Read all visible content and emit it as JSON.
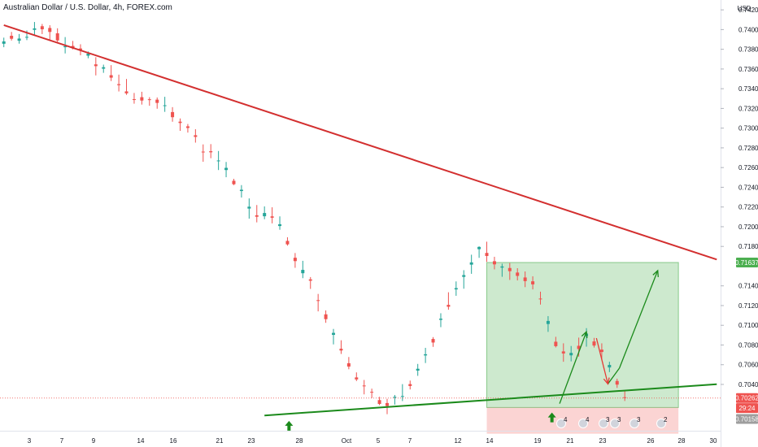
{
  "header": {
    "title": "Australian Dollar / U.S. Dollar, 4h, FOREX.com"
  },
  "chart_data": {
    "type": "candlestick",
    "title": "Australian Dollar / U.S. Dollar, 4h, FOREX.com",
    "currency_label": "USD",
    "ylim": [
      0.6993,
      0.743
    ],
    "y_ticks": [
      "0.74200",
      "0.74000",
      "0.73800",
      "0.73600",
      "0.73400",
      "0.73200",
      "0.73000",
      "0.72800",
      "0.72600",
      "0.72400",
      "0.72200",
      "0.72000",
      "0.71800",
      "0.71400",
      "0.71200",
      "0.71000",
      "0.70800",
      "0.70600",
      "0.70400"
    ],
    "x_ticks": [
      "3",
      "7",
      "9",
      "14",
      "16",
      "21",
      "23",
      "28",
      "Oct",
      "5",
      "7",
      "12",
      "14",
      "19",
      "21",
      "23",
      "26",
      "28",
      "30"
    ],
    "price_tags": [
      {
        "label": "0.71637",
        "value": 0.71637,
        "color": "#4caf50"
      },
      {
        "label": "0.70262",
        "value": 0.70262,
        "color": "#ef5350"
      },
      {
        "label": "29:24",
        "value": 0.7016,
        "color": "#ef5350"
      },
      {
        "label": "0.70158",
        "value": 0.7005,
        "color": "#9e9e9e"
      }
    ],
    "trendlines": [
      {
        "name": "resistance",
        "color": "#d32f2f",
        "from": [
          0,
          0.74045
        ],
        "to": [
          93,
          0.71667
        ]
      },
      {
        "name": "support",
        "color": "#1b8a1b",
        "from": [
          34,
          0.70085
        ],
        "to": [
          93,
          0.70402
        ]
      }
    ],
    "position": {
      "entry": 0.70166,
      "target": 0.71637,
      "stop": 0.699,
      "start_bar": 63,
      "end_bar": 88
    },
    "projection": [
      [
        72.5,
        0.70205
      ],
      [
        76,
        0.70935
      ],
      [
        77.3,
        0.7087
      ],
      [
        78.8,
        0.70405
      ],
      [
        80.3,
        0.70565
      ],
      [
        85.3,
        0.71555
      ]
    ],
    "arrows_up": [
      [
        37.2,
        0.7003
      ],
      [
        71.5,
        0.70115
      ]
    ],
    "bull_color": "#26a69a",
    "bear_color": "#ef5350",
    "events": [
      "4",
      "4",
      "3",
      "3",
      "3",
      "2"
    ],
    "candles": [
      [
        0.73856,
        0.73918,
        0.73821,
        0.7388
      ],
      [
        0.73937,
        0.73976,
        0.73889,
        0.73907
      ],
      [
        0.73887,
        0.73955,
        0.73857,
        0.73909
      ],
      [
        0.73925,
        0.73991,
        0.73893,
        0.73926
      ],
      [
        0.73997,
        0.74077,
        0.73938,
        0.74012
      ],
      [
        0.74034,
        0.74057,
        0.73954,
        0.74003
      ],
      [
        0.74016,
        0.74044,
        0.73893,
        0.73976
      ],
      [
        0.73962,
        0.74013,
        0.73875,
        0.7389
      ],
      [
        0.73821,
        0.73924,
        0.73758,
        0.73832
      ],
      [
        0.73834,
        0.73885,
        0.73799,
        0.73809
      ],
      [
        0.73808,
        0.73851,
        0.73739,
        0.73794
      ],
      [
        0.73735,
        0.73778,
        0.73709,
        0.73756
      ],
      [
        0.73647,
        0.7372,
        0.73535,
        0.73629
      ],
      [
        0.73603,
        0.73644,
        0.73561,
        0.73618
      ],
      [
        0.73537,
        0.73639,
        0.73478,
        0.73512
      ],
      [
        0.73446,
        0.73543,
        0.73372,
        0.73436
      ],
      [
        0.73373,
        0.73499,
        0.73338,
        0.73353
      ],
      [
        0.73294,
        0.73357,
        0.73248,
        0.7329
      ],
      [
        0.73314,
        0.73369,
        0.73239,
        0.7328
      ],
      [
        0.73293,
        0.73314,
        0.73227,
        0.73292
      ],
      [
        0.73289,
        0.73311,
        0.73197,
        0.73256
      ],
      [
        0.73229,
        0.73318,
        0.73165,
        0.73232
      ],
      [
        0.73163,
        0.73213,
        0.73065,
        0.73111
      ],
      [
        0.73066,
        0.73098,
        0.72972,
        0.73052
      ],
      [
        0.73018,
        0.73042,
        0.72955,
        0.73002
      ],
      [
        0.72928,
        0.72989,
        0.72853,
        0.72911
      ],
      [
        0.72762,
        0.72835,
        0.72659,
        0.7276
      ],
      [
        0.72766,
        0.72838,
        0.72695,
        0.72755
      ],
      [
        0.72669,
        0.72768,
        0.72575,
        0.72672
      ],
      [
        0.72575,
        0.72657,
        0.72502,
        0.72597
      ],
      [
        0.72466,
        0.72486,
        0.72422,
        0.72431
      ],
      [
        0.72362,
        0.72422,
        0.72296,
        0.72375
      ],
      [
        0.72184,
        0.72287,
        0.72082,
        0.72203
      ],
      [
        0.72116,
        0.7222,
        0.72044,
        0.72101
      ],
      [
        0.72106,
        0.72206,
        0.72076,
        0.72139
      ],
      [
        0.72105,
        0.72197,
        0.72034,
        0.72091
      ],
      [
        0.72007,
        0.72105,
        0.71969,
        0.72025
      ],
      [
        0.71856,
        0.71893,
        0.71808,
        0.71821
      ],
      [
        0.71685,
        0.71733,
        0.71583,
        0.71651
      ],
      [
        0.71528,
        0.71654,
        0.71478,
        0.71562
      ],
      [
        0.71466,
        0.71489,
        0.71369,
        0.71452
      ],
      [
        0.71255,
        0.71318,
        0.71141,
        0.71249
      ],
      [
        0.71111,
        0.71151,
        0.71025,
        0.71062
      ],
      [
        0.70903,
        0.70963,
        0.70806,
        0.70923
      ],
      [
        0.70762,
        0.70848,
        0.70709,
        0.70744
      ],
      [
        0.70615,
        0.70678,
        0.70554,
        0.70581
      ],
      [
        0.70471,
        0.70522,
        0.70434,
        0.70451
      ],
      [
        0.70389,
        0.70445,
        0.70299,
        0.70381
      ],
      [
        0.70325,
        0.70357,
        0.70262,
        0.70323
      ],
      [
        0.70241,
        0.70274,
        0.7019,
        0.70202
      ],
      [
        0.70211,
        0.70254,
        0.70098,
        0.70181
      ],
      [
        0.70265,
        0.70293,
        0.70195,
        0.70274
      ],
      [
        0.7028,
        0.70403,
        0.70231,
        0.70282
      ],
      [
        0.70403,
        0.70439,
        0.70349,
        0.70384
      ],
      [
        0.7054,
        0.70608,
        0.70487,
        0.70559
      ],
      [
        0.70694,
        0.70771,
        0.70617,
        0.70706
      ],
      [
        0.70861,
        0.7088,
        0.70781,
        0.70825
      ],
      [
        0.71055,
        0.71122,
        0.70981,
        0.71067
      ],
      [
        0.71207,
        0.71335,
        0.71158,
        0.71188
      ],
      [
        0.71364,
        0.71445,
        0.71299,
        0.71377
      ],
      [
        0.71491,
        0.71559,
        0.71371,
        0.71509
      ],
      [
        0.71615,
        0.71716,
        0.71522,
        0.71638
      ],
      [
        0.71772,
        0.71801,
        0.71684,
        0.71795
      ],
      [
        0.71734,
        0.71848,
        0.71643,
        0.71703
      ],
      [
        0.7165,
        0.71695,
        0.71567,
        0.71618
      ],
      [
        0.71585,
        0.71625,
        0.71492,
        0.71597
      ],
      [
        0.71581,
        0.71632,
        0.7146,
        0.71549
      ],
      [
        0.71535,
        0.71579,
        0.71455,
        0.71501
      ],
      [
        0.71485,
        0.71546,
        0.71387,
        0.71448
      ],
      [
        0.71446,
        0.71497,
        0.71364,
        0.71415
      ],
      [
        0.71271,
        0.71341,
        0.7121,
        0.71269
      ],
      [
        0.71013,
        0.71093,
        0.70933,
        0.71044
      ],
      [
        0.70833,
        0.70883,
        0.70775,
        0.70788
      ],
      [
        0.70735,
        0.70817,
        0.7063,
        0.70714
      ],
      [
        0.70695,
        0.7079,
        0.70634,
        0.7072
      ],
      [
        0.70792,
        0.70875,
        0.70682,
        0.70759
      ],
      [
        0.70889,
        0.70971,
        0.70783,
        0.70916
      ],
      [
        0.70836,
        0.70872,
        0.70774,
        0.70794
      ],
      [
        0.70753,
        0.70817,
        0.70655,
        0.70729
      ],
      [
        0.70572,
        0.7063,
        0.70525,
        0.70598
      ],
      [
        0.70435,
        0.70458,
        0.70365,
        0.70398
      ],
      [
        0.7027,
        0.70339,
        0.70232,
        0.70262
      ]
    ]
  }
}
